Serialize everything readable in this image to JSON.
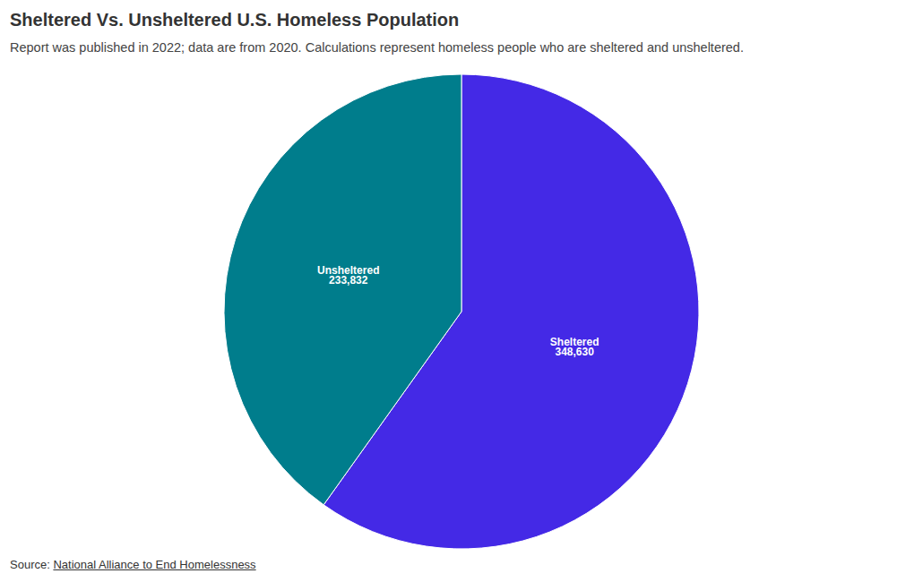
{
  "chart_data": {
    "type": "pie",
    "title": "Sheltered Vs. Unsheltered U.S. Homeless Population",
    "subtitle": "Report was published in 2022; data are from 2020. Calculations represent homeless people who are sheltered and unsheltered.",
    "source_label": "Source:",
    "source": "National Alliance to End Homelessness",
    "categories": [
      "Sheltered",
      "Unsheltered"
    ],
    "values": [
      348630,
      233832
    ],
    "value_labels": [
      "348,630",
      "233,832"
    ],
    "colors": [
      "#4429E6",
      "#007D8C"
    ],
    "data_labels": true
  }
}
